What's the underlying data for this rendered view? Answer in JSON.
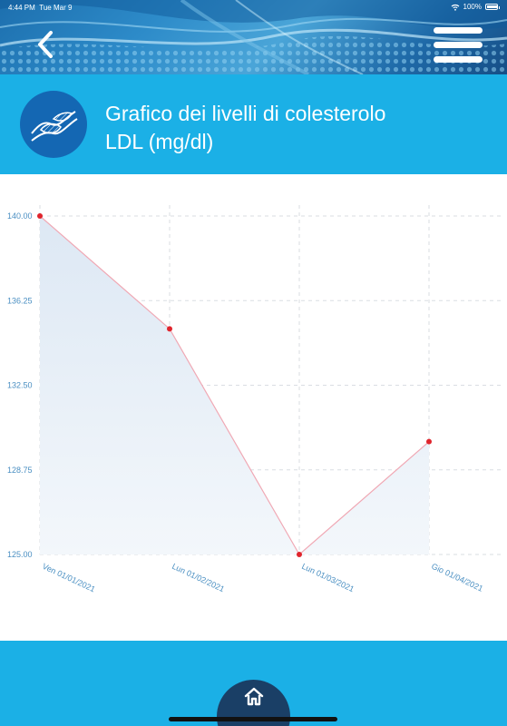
{
  "status_bar": {
    "time": "4:44 PM",
    "date": "Tue Mar 9",
    "battery": "100%",
    "battery_level": 1.0
  },
  "header": {
    "back_icon": "chevron-left-icon",
    "menu_icon": "hamburger-menu-icon",
    "section_icon": "blood-vessel-icon",
    "title_line1": "Grafico dei livelli di colesterolo",
    "title_line2": "LDL (mg/dl)"
  },
  "footer": {
    "home_icon": "home-icon"
  },
  "colors": {
    "band": "#1bb0e6",
    "icon_circle": "#1467b3",
    "home_button": "#1a3f66",
    "line": "#f0a8b4",
    "point": "#e0242c",
    "fill": "#e8f0f8",
    "tick_text": "#4a8fc2"
  },
  "chart_data": {
    "type": "area",
    "x": [
      "Ven 01/01/2021",
      "Lun 01/02/2021",
      "Lun 01/03/2021",
      "Gio 01/04/2021"
    ],
    "y_ticks": [
      "140.00",
      "136.25",
      "132.50",
      "128.75",
      "125.00"
    ],
    "series": [
      {
        "values": [
          140.0,
          135.0,
          125.0,
          130.0
        ]
      }
    ],
    "ylim": [
      125.0,
      140.0
    ],
    "grid": true,
    "grid_style": "dashed"
  }
}
